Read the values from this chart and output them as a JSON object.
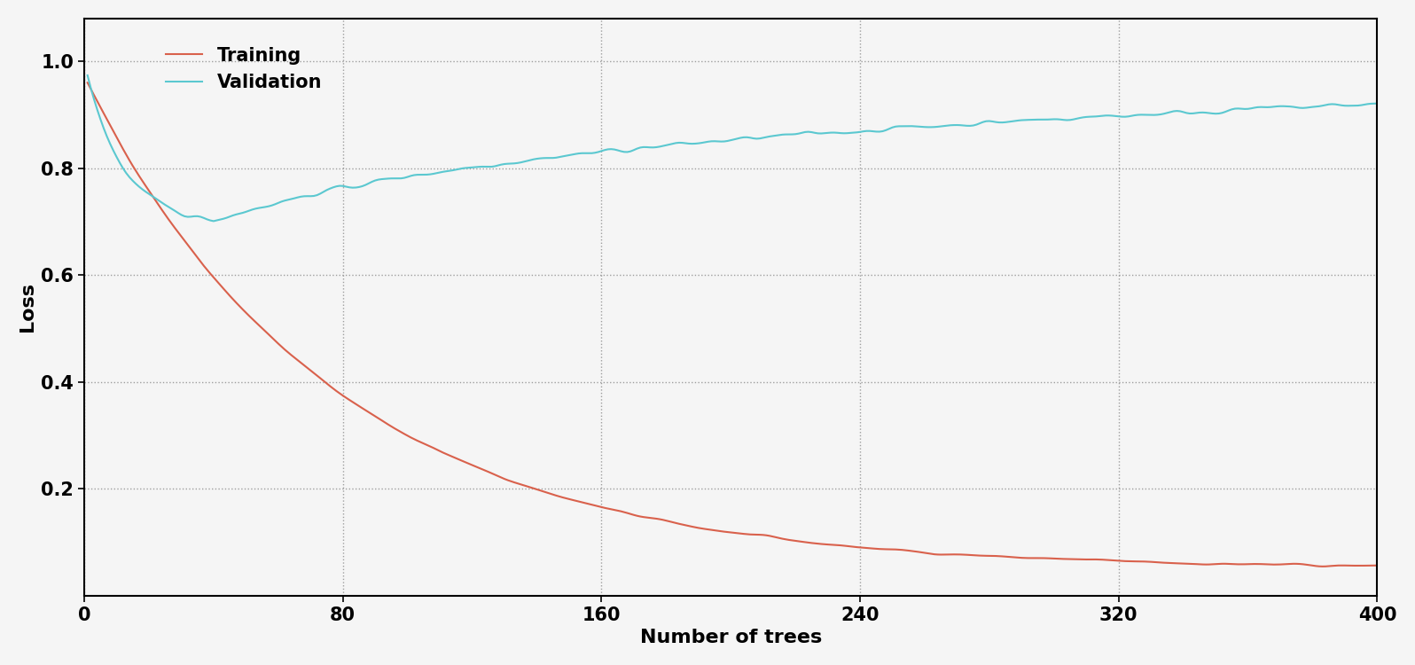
{
  "xlabel": "Number of trees",
  "ylabel": "Loss",
  "xlim": [
    0,
    400
  ],
  "ylim": [
    0,
    1.08
  ],
  "xticks": [
    0,
    80,
    160,
    240,
    320,
    400
  ],
  "yticks": [
    0.2,
    0.4,
    0.6,
    0.8,
    1.0
  ],
  "training_color": "#d9614c",
  "validation_color": "#5bc8d0",
  "legend_labels": [
    "Training",
    "Validation"
  ],
  "background_color": "#f5f5f5",
  "grid_color": "#888888",
  "n_trees": 400,
  "figsize": [
    15.96,
    7.5
  ],
  "dpi": 100
}
